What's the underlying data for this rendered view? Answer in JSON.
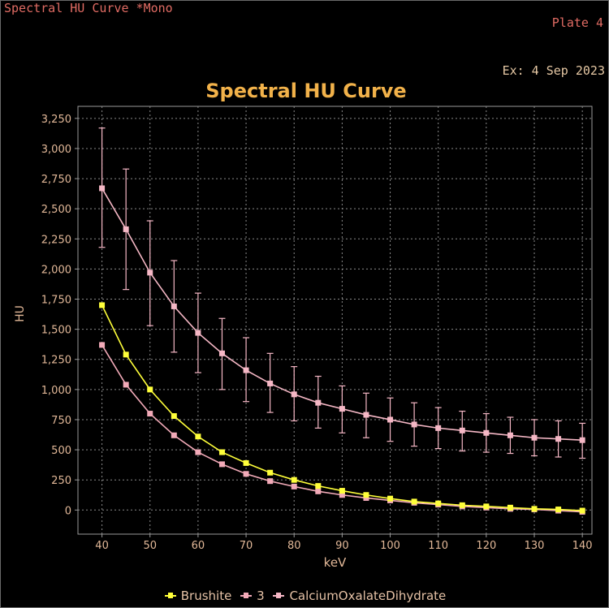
{
  "window": {
    "title": "Spectral HU Curve *Mono",
    "plate": "Plate 4",
    "exam_date": "Ex: 4 Sep 2023"
  },
  "colors": {
    "background": "#000000",
    "plot_background": "#000000",
    "grid": "#8a8a8a",
    "axis_text": "#e2b898",
    "title": "#f2b24a",
    "series_brushite": "#ffff3a",
    "series_3": "#f2aab8",
    "series_calcium_oxalate": "#f5b7c5"
  },
  "chart_data": {
    "type": "line",
    "title": "Spectral HU Curve",
    "xlabel": "keV",
    "ylabel": "HU",
    "xlim": [
      35,
      142
    ],
    "ylim": [
      -200,
      3350
    ],
    "xticks": [
      40,
      50,
      60,
      70,
      80,
      90,
      100,
      110,
      120,
      130,
      140
    ],
    "yticks": [
      0,
      250,
      500,
      750,
      1000,
      1250,
      1500,
      1750,
      2000,
      2250,
      2500,
      2750,
      3000,
      3250
    ],
    "ytick_labels": [
      "0",
      "250",
      "500",
      "750",
      "1,000",
      "1,250",
      "1,500",
      "1,750",
      "2,000",
      "2,250",
      "2,500",
      "2,750",
      "3,000",
      "3,250"
    ],
    "grid": true,
    "legend_position": "bottom",
    "x": [
      40,
      45,
      50,
      55,
      60,
      65,
      70,
      75,
      80,
      85,
      90,
      95,
      100,
      105,
      110,
      115,
      120,
      125,
      130,
      135,
      140
    ],
    "series": [
      {
        "name": "Brushite",
        "color": "#ffff3a",
        "values": [
          1700,
          1290,
          1000,
          780,
          610,
          480,
          390,
          310,
          250,
          200,
          160,
          125,
          95,
          70,
          55,
          40,
          30,
          20,
          10,
          5,
          -5
        ]
      },
      {
        "name": "3",
        "color": "#f2aab8",
        "values": [
          1370,
          1040,
          800,
          620,
          480,
          380,
          300,
          240,
          195,
          155,
          125,
          100,
          80,
          60,
          45,
          30,
          20,
          10,
          5,
          -5,
          -15
        ]
      },
      {
        "name": "CalciumOxalateDihydrate",
        "color": "#f5b7c5",
        "values": [
          2670,
          2330,
          1970,
          1690,
          1470,
          1300,
          1160,
          1050,
          960,
          890,
          840,
          790,
          750,
          710,
          680,
          660,
          640,
          620,
          600,
          590,
          580
        ],
        "error_upper": [
          3170,
          2830,
          2400,
          2070,
          1800,
          1590,
          1430,
          1300,
          1190,
          1110,
          1030,
          970,
          930,
          890,
          850,
          820,
          800,
          770,
          750,
          740,
          720
        ],
        "error_lower": [
          2180,
          1830,
          1530,
          1310,
          1140,
          1000,
          900,
          810,
          740,
          680,
          640,
          600,
          570,
          530,
          510,
          490,
          480,
          470,
          450,
          440,
          430
        ]
      }
    ]
  }
}
